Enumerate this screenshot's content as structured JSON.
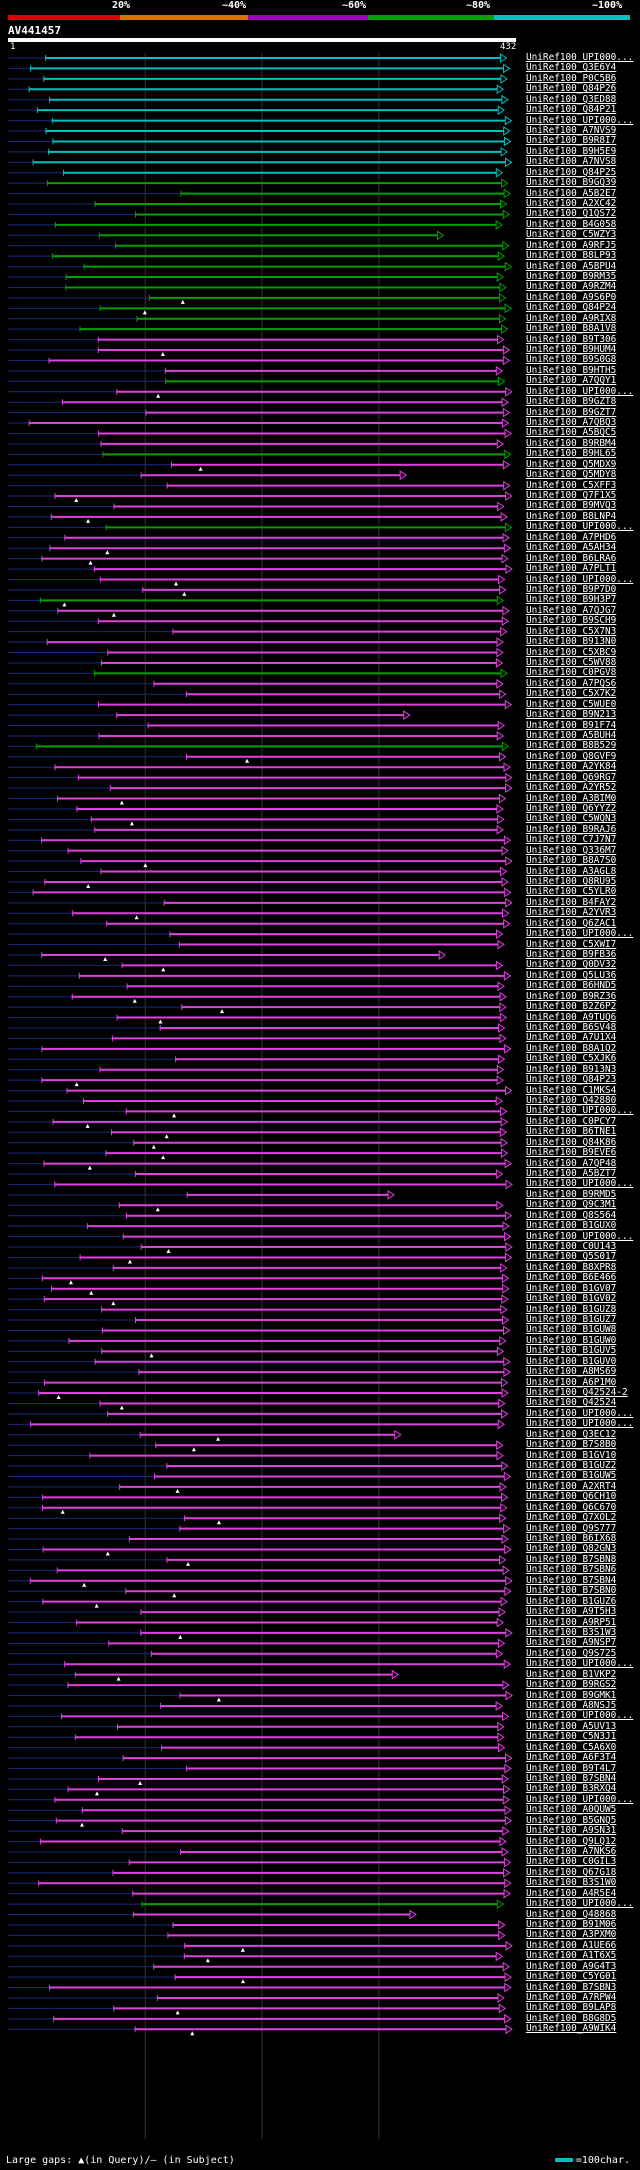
{
  "scale": {
    "labels": [
      "20%",
      "~40%",
      "~60%",
      "~80%",
      "~100%"
    ],
    "colors": [
      "#e00000",
      "#e07000",
      "#a000c0",
      "#00a000",
      "#00c0c0"
    ]
  },
  "query": {
    "title": "AV441457",
    "start": "1",
    "end": "432",
    "length": 432
  },
  "entries": [
    "UniRef100_UPI000...",
    "UniRef100_Q3E6Y4",
    "UniRef100_P0C5B6",
    "UniRef100_Q84P26",
    "UniRef100_Q3ED88",
    "UniRef100_Q84P21",
    "UniRef100_UPI000...",
    "UniRef100_A7NVS9",
    "UniRef100_B9R8I7",
    "UniRef100_B9H5E9",
    "UniRef100_A7NVS8",
    "UniRef100_Q84P25",
    "UniRef100_B9GQ39",
    "UniRef100_A5B2E7",
    "UniRef100_A2XC42",
    "UniRef100_Q1QS72",
    "UniRef100_B4G058",
    "UniRef100_C5WZY3",
    "UniRef100_A9RFJ5",
    "UniRef100_B8LP93",
    "UniRef100_A5BPU4",
    "UniRef100_B9RM35",
    "UniRef100_A9RZM4",
    "UniRef100_A9S6P0",
    "UniRef100_Q84P24",
    "UniRef100_A9RIX8",
    "UniRef100_B8A1V8",
    "UniRef100_B9T306",
    "UniRef100_B9HUM4",
    "UniRef100_B9S0G8",
    "UniRef100_B9HTH5",
    "UniRef100_A7QQY1",
    "UniRef100_UPI000...",
    "UniRef100_B9GZT8",
    "UniRef100_B9GZT7",
    "UniRef100_A7QBQ3",
    "UniRef100_A5BQC5",
    "UniRef100_B9RBM4",
    "UniRef100_B9HL65",
    "UniRef100_Q5MDX9",
    "UniRef100_Q5MDY8",
    "UniRef100_C5XFF3",
    "UniRef100_Q7F1X5",
    "UniRef100_B9MVQ3",
    "UniRef100_B8LNP4",
    "UniRef100_UPI000...",
    "UniRef100_A7PHD6",
    "UniRef100_A5AH34",
    "UniRef100_B6LRA6",
    "UniRef100_A7PLT1",
    "UniRef100_UPI000...",
    "UniRef100_B9P7D0",
    "UniRef100_B9H3P7",
    "UniRef100_A7QJG7",
    "UniRef100_B9SCH9",
    "UniRef100_C5X7N3",
    "UniRef100_B913N0",
    "UniRef100_C5XBC9",
    "UniRef100_C5WV88",
    "UniRef100_C0PGV8",
    "UniRef100_A7PQS6",
    "UniRef100_C5X7K2",
    "UniRef100_C5WUE0",
    "UniRef100_B9N213",
    "UniRef100_B91F74",
    "UniRef100_A5BUH4",
    "UniRef100_B8B529",
    "UniRef100_Q8GVF9",
    "UniRef100_A2YK84",
    "UniRef100_Q69RG7",
    "UniRef100_A2YR52",
    "UniRef100_A3BIM0",
    "UniRef100_Q6YYZ2",
    "UniRef100_C5WQN3",
    "UniRef100_B9RAJ6",
    "UniRef100_C7J7N7",
    "UniRef100_Q336M7",
    "UniRef100_B8A7S0",
    "UniRef100_A3AGL8",
    "UniRef100_Q8RU95",
    "UniRef100_C5YLR0",
    "UniRef100_B4FAY2",
    "UniRef100_A2YVR3",
    "UniRef100_Q6ZAC1",
    "UniRef100_UPI000...",
    "UniRef100_C5XWI7",
    "UniRef100_B9FB36",
    "UniRef100_Q0DV32",
    "UniRef100_Q5LU36",
    "UniRef100_B6HND5",
    "UniRef100_B9RZ36",
    "UniRef100_B2Z6P2",
    "UniRef100_A9TUQ6",
    "UniRef100_B6SV48",
    "UniRef100_A7U1X4",
    "UniRef100_B8A1Q2",
    "UniRef100_C5XJK6",
    "UniRef100_B913N3",
    "UniRef100_Q84P23",
    "UniRef100_C1MKS4",
    "UniRef100_Q42880",
    "UniRef100_UPI000...",
    "UniRef100_C0PCY7",
    "UniRef100_B6TNE1",
    "UniRef100_Q84K86",
    "UniRef100_B9EVE6",
    "UniRef100_A7QP48",
    "UniRef100_A5BZT7",
    "UniRef100_UPI000...",
    "UniRef100_B9RMD5",
    "UniRef100_Q9C3M1",
    "UniRef100_Q8S564",
    "UniRef100_B1GUX0",
    "UniRef100_UPI000...",
    "UniRef100_C0U143",
    "UniRef100_Q5S017",
    "UniRef100_B8XPR8",
    "UniRef100_B6E466",
    "UniRef100_B1GV07",
    "UniRef100_B1GV02",
    "UniRef100_B1GUZ8",
    "UniRef100_B1GUZ7",
    "UniRef100_B1GUW8",
    "UniRef100_B1GUW0",
    "UniRef100_B1GUV5",
    "UniRef100_B1GUV0",
    "UniRef100_A8MS69",
    "UniRef100_A6P1M0",
    "UniRef100_Q42524-2",
    "UniRef100_Q42524",
    "UniRef100_UPI000...",
    "UniRef100_UPI000...",
    "UniRef100_Q3EC12",
    "UniRef100_B7S8B0",
    "UniRef100_B1GV10",
    "UniRef100_B1GUZ2",
    "UniRef100_B1GUW5",
    "UniRef100_A2XRT4",
    "UniRef100_Q6CH10",
    "UniRef100_Q6C670",
    "UniRef100_Q7XOL2",
    "UniRef100_Q9S777",
    "UniRef100_B6IX68",
    "UniRef100_Q82GN3",
    "UniRef100_B7SBN8",
    "UniRef100_B7SBN6",
    "UniRef100_B7SBN4",
    "UniRef100_B7SBN0",
    "UniRef100_B1GUZ6",
    "UniRef100_A9T5H3",
    "UniRef100_A9RP51",
    "UniRef100_B3S1W3",
    "UniRef100_A9NSP7",
    "UniRef100_Q9S725",
    "UniRef100_UPI000...",
    "UniRef100_B1VKP2",
    "UniRef100_B9RGS2",
    "UniRef100_B9GMK1",
    "UniRef100_A8NSJ5",
    "UniRef100_UPI000...",
    "UniRef100_A5UV13",
    "UniRef100_C5N3J1",
    "UniRef100_C5A6X0",
    "UniRef100_A6F3T4",
    "UniRef100_B9T4L7",
    "UniRef100_B7SBN4",
    "UniRef100_B3RXQ4",
    "UniRef100_UPI000...",
    "UniRef100_A0QUW5",
    "UniRef100_B5GNQ5",
    "UniRef100_A9SN31",
    "UniRef100_Q9LQ12",
    "UniRef100_A7NKS6",
    "UniRef100_C0GIL3",
    "UniRef100_Q67G18",
    "UniRef100_B3S1W0",
    "UniRef100_A4R5E4",
    "UniRef100_UPI000...",
    "UniRef100_Q48868",
    "UniRef100_B91M06",
    "UniRef100_A3PXM0",
    "UniRef100_A1UE66",
    "UniRef100_A1T6X5",
    "UniRef100_A9G4T3",
    "UniRef100_C5YG01",
    "UniRef100_B7SBN3",
    "UniRef100_A7RPW4",
    "UniRef100_B9LAP8",
    "UniRef100_B8G8D5",
    "UniRef100_A9WIK4"
  ],
  "footer": {
    "gaps_text": "Large gaps: ▲(in Query)/— (in Subject)",
    "key_text": "=100char."
  }
}
